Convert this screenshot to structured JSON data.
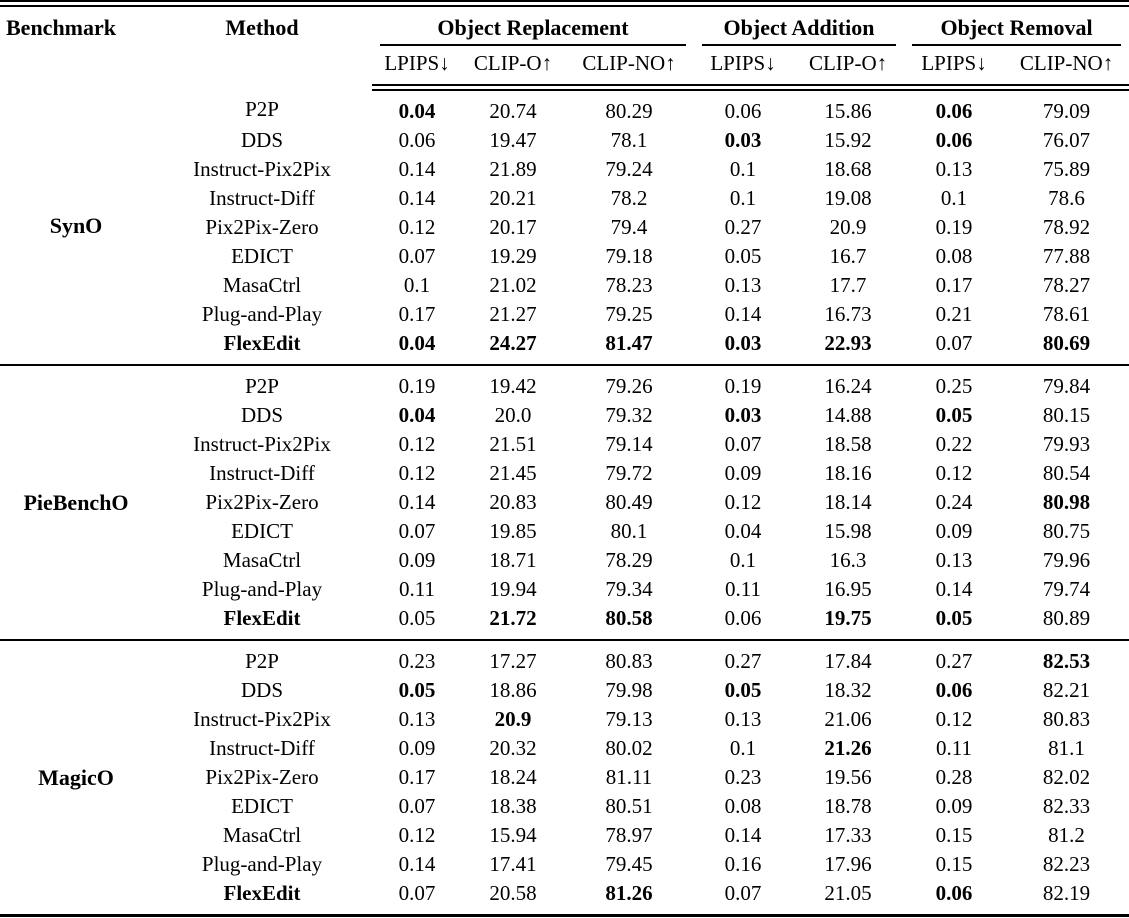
{
  "table": {
    "columns": {
      "benchmark": "Benchmark",
      "method": "Method"
    },
    "column_groups": [
      {
        "label": "Object Replacement",
        "subcolumns": [
          "LPIPS↓",
          "CLIP-O↑",
          "CLIP-NO↑"
        ]
      },
      {
        "label": "Object Addition",
        "subcolumns": [
          "LPIPS↓",
          "CLIP-O↑"
        ]
      },
      {
        "label": "Object Removal",
        "subcolumns": [
          "LPIPS↓",
          "CLIP-NO↑"
        ]
      }
    ],
    "groups": [
      {
        "benchmark": "SynO",
        "rows": [
          {
            "method": "P2P",
            "bold_method": false,
            "values": [
              "0.04",
              "20.74",
              "80.29",
              "0.06",
              "15.86",
              "0.06",
              "79.09"
            ],
            "bold": [
              true,
              false,
              false,
              false,
              false,
              true,
              false
            ]
          },
          {
            "method": "DDS",
            "bold_method": false,
            "values": [
              "0.06",
              "19.47",
              "78.1",
              "0.03",
              "15.92",
              "0.06",
              "76.07"
            ],
            "bold": [
              false,
              false,
              false,
              true,
              false,
              true,
              false
            ]
          },
          {
            "method": "Instruct-Pix2Pix",
            "bold_method": false,
            "values": [
              "0.14",
              "21.89",
              "79.24",
              "0.1",
              "18.68",
              "0.13",
              "75.89"
            ],
            "bold": [
              false,
              false,
              false,
              false,
              false,
              false,
              false
            ]
          },
          {
            "method": "Instruct-Diff",
            "bold_method": false,
            "values": [
              "0.14",
              "20.21",
              "78.2",
              "0.1",
              "19.08",
              "0.1",
              "78.6"
            ],
            "bold": [
              false,
              false,
              false,
              false,
              false,
              false,
              false
            ]
          },
          {
            "method": "Pix2Pix-Zero",
            "bold_method": false,
            "values": [
              "0.12",
              "20.17",
              "79.4",
              "0.27",
              "20.9",
              "0.19",
              "78.92"
            ],
            "bold": [
              false,
              false,
              false,
              false,
              false,
              false,
              false
            ]
          },
          {
            "method": "EDICT",
            "bold_method": false,
            "values": [
              "0.07",
              "19.29",
              "79.18",
              "0.05",
              "16.7",
              "0.08",
              "77.88"
            ],
            "bold": [
              false,
              false,
              false,
              false,
              false,
              false,
              false
            ]
          },
          {
            "method": "MasaCtrl",
            "bold_method": false,
            "values": [
              "0.1",
              "21.02",
              "78.23",
              "0.13",
              "17.7",
              "0.17",
              "78.27"
            ],
            "bold": [
              false,
              false,
              false,
              false,
              false,
              false,
              false
            ]
          },
          {
            "method": "Plug-and-Play",
            "bold_method": false,
            "values": [
              "0.17",
              "21.27",
              "79.25",
              "0.14",
              "16.73",
              "0.21",
              "78.61"
            ],
            "bold": [
              false,
              false,
              false,
              false,
              false,
              false,
              false
            ]
          },
          {
            "method": "FlexEdit",
            "bold_method": true,
            "values": [
              "0.04",
              "24.27",
              "81.47",
              "0.03",
              "22.93",
              "0.07",
              "80.69"
            ],
            "bold": [
              true,
              true,
              true,
              true,
              true,
              false,
              true
            ]
          }
        ]
      },
      {
        "benchmark": "PieBenchO",
        "rows": [
          {
            "method": "P2P",
            "bold_method": false,
            "values": [
              "0.19",
              "19.42",
              "79.26",
              "0.19",
              "16.24",
              "0.25",
              "79.84"
            ],
            "bold": [
              false,
              false,
              false,
              false,
              false,
              false,
              false
            ]
          },
          {
            "method": "DDS",
            "bold_method": false,
            "values": [
              "0.04",
              "20.0",
              "79.32",
              "0.03",
              "14.88",
              "0.05",
              "80.15"
            ],
            "bold": [
              true,
              false,
              false,
              true,
              false,
              true,
              false
            ]
          },
          {
            "method": "Instruct-Pix2Pix",
            "bold_method": false,
            "values": [
              "0.12",
              "21.51",
              "79.14",
              "0.07",
              "18.58",
              "0.22",
              "79.93"
            ],
            "bold": [
              false,
              false,
              false,
              false,
              false,
              false,
              false
            ]
          },
          {
            "method": "Instruct-Diff",
            "bold_method": false,
            "values": [
              "0.12",
              "21.45",
              "79.72",
              "0.09",
              "18.16",
              "0.12",
              "80.54"
            ],
            "bold": [
              false,
              false,
              false,
              false,
              false,
              false,
              false
            ]
          },
          {
            "method": "Pix2Pix-Zero",
            "bold_method": false,
            "values": [
              "0.14",
              "20.83",
              "80.49",
              "0.12",
              "18.14",
              "0.24",
              "80.98"
            ],
            "bold": [
              false,
              false,
              false,
              false,
              false,
              false,
              true
            ]
          },
          {
            "method": "EDICT",
            "bold_method": false,
            "values": [
              "0.07",
              "19.85",
              "80.1",
              "0.04",
              "15.98",
              "0.09",
              "80.75"
            ],
            "bold": [
              false,
              false,
              false,
              false,
              false,
              false,
              false
            ]
          },
          {
            "method": "MasaCtrl",
            "bold_method": false,
            "values": [
              "0.09",
              "18.71",
              "78.29",
              "0.1",
              "16.3",
              "0.13",
              "79.96"
            ],
            "bold": [
              false,
              false,
              false,
              false,
              false,
              false,
              false
            ]
          },
          {
            "method": "Plug-and-Play",
            "bold_method": false,
            "values": [
              "0.11",
              "19.94",
              "79.34",
              "0.11",
              "16.95",
              "0.14",
              "79.74"
            ],
            "bold": [
              false,
              false,
              false,
              false,
              false,
              false,
              false
            ]
          },
          {
            "method": "FlexEdit",
            "bold_method": true,
            "values": [
              "0.05",
              "21.72",
              "80.58",
              "0.06",
              "19.75",
              "0.05",
              "80.89"
            ],
            "bold": [
              false,
              true,
              true,
              false,
              true,
              true,
              false
            ]
          }
        ]
      },
      {
        "benchmark": "MagicO",
        "rows": [
          {
            "method": "P2P",
            "bold_method": false,
            "values": [
              "0.23",
              "17.27",
              "80.83",
              "0.27",
              "17.84",
              "0.27",
              "82.53"
            ],
            "bold": [
              false,
              false,
              false,
              false,
              false,
              false,
              true
            ]
          },
          {
            "method": "DDS",
            "bold_method": false,
            "values": [
              "0.05",
              "18.86",
              "79.98",
              "0.05",
              "18.32",
              "0.06",
              "82.21"
            ],
            "bold": [
              true,
              false,
              false,
              true,
              false,
              true,
              false
            ]
          },
          {
            "method": "Instruct-Pix2Pix",
            "bold_method": false,
            "values": [
              "0.13",
              "20.9",
              "79.13",
              "0.13",
              "21.06",
              "0.12",
              "80.83"
            ],
            "bold": [
              false,
              true,
              false,
              false,
              false,
              false,
              false
            ]
          },
          {
            "method": "Instruct-Diff",
            "bold_method": false,
            "values": [
              "0.09",
              "20.32",
              "80.02",
              "0.1",
              "21.26",
              "0.11",
              "81.1"
            ],
            "bold": [
              false,
              false,
              false,
              false,
              true,
              false,
              false
            ]
          },
          {
            "method": "Pix2Pix-Zero",
            "bold_method": false,
            "values": [
              "0.17",
              "18.24",
              "81.11",
              "0.23",
              "19.56",
              "0.28",
              "82.02"
            ],
            "bold": [
              false,
              false,
              false,
              false,
              false,
              false,
              false
            ]
          },
          {
            "method": "EDICT",
            "bold_method": false,
            "values": [
              "0.07",
              "18.38",
              "80.51",
              "0.08",
              "18.78",
              "0.09",
              "82.33"
            ],
            "bold": [
              false,
              false,
              false,
              false,
              false,
              false,
              false
            ]
          },
          {
            "method": "MasaCtrl",
            "bold_method": false,
            "values": [
              "0.12",
              "15.94",
              "78.97",
              "0.14",
              "17.33",
              "0.15",
              "81.2"
            ],
            "bold": [
              false,
              false,
              false,
              false,
              false,
              false,
              false
            ]
          },
          {
            "method": "Plug-and-Play",
            "bold_method": false,
            "values": [
              "0.14",
              "17.41",
              "79.45",
              "0.16",
              "17.96",
              "0.15",
              "82.23"
            ],
            "bold": [
              false,
              false,
              false,
              false,
              false,
              false,
              false
            ]
          },
          {
            "method": "FlexEdit",
            "bold_method": true,
            "values": [
              "0.07",
              "20.58",
              "81.26",
              "0.07",
              "21.05",
              "0.06",
              "82.19"
            ],
            "bold": [
              false,
              false,
              true,
              false,
              false,
              true,
              false
            ]
          }
        ]
      }
    ]
  }
}
